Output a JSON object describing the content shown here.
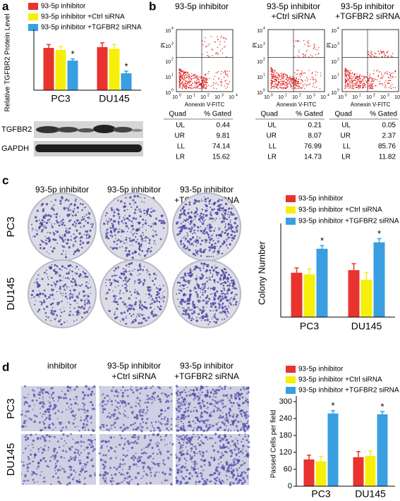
{
  "panel_labels": [
    "a",
    "b",
    "c",
    "d"
  ],
  "chart_data": [
    {
      "type": "bar",
      "ylabel": "Relative TGFBR2 Protein Level",
      "categories": [
        "PC3",
        "DU145"
      ],
      "ylim": [
        0,
        1.3
      ],
      "series": [
        {
          "name": "93-5p inhibitor",
          "color": "#e8332e",
          "values": [
            1.0,
            1.02
          ],
          "errors": [
            0.08,
            0.1
          ]
        },
        {
          "name": "93-5p inhibitor +Ctrl siRNA",
          "color": "#f5ef0a",
          "values": [
            0.95,
            0.98
          ],
          "errors": [
            0.08,
            0.1
          ]
        },
        {
          "name": "93-5p inhibitor +TGFBR2 siRNA",
          "color": "#3a9fe0",
          "values": [
            0.7,
            0.4
          ],
          "errors": [
            0.04,
            0.05
          ],
          "significance": [
            "*",
            "*"
          ]
        }
      ]
    },
    {
      "type": "bar",
      "ylabel": "Colony Number",
      "categories": [
        "PC3",
        "DU145"
      ],
      "ylim": [
        0,
        165
      ],
      "series": [
        {
          "name": "93-5p inhibitor",
          "color": "#e8332e",
          "values": [
            83,
            88
          ],
          "errors": [
            9,
            12
          ]
        },
        {
          "name": "93-5p inhibitor +Ctrl siRNA",
          "color": "#f5ef0a",
          "values": [
            80,
            70
          ],
          "errors": [
            10,
            13
          ]
        },
        {
          "name": "93-5p inhibitor +TGFBR2 siRNA",
          "color": "#3a9fe0",
          "values": [
            128,
            140
          ],
          "errors": [
            6,
            7
          ],
          "significance": [
            "*",
            "*"
          ]
        }
      ]
    },
    {
      "type": "bar",
      "ylabel": "Passed Cells per field",
      "categories": [
        "PC3",
        "DU145"
      ],
      "ylim": [
        0,
        300
      ],
      "yticks": [
        0,
        60,
        120,
        180,
        240,
        300
      ],
      "series": [
        {
          "name": "93-5p inhibitor",
          "color": "#e8332e",
          "values": [
            95,
            103
          ],
          "errors": [
            15,
            20
          ]
        },
        {
          "name": "93-5p inhibitor +Ctrl siRNA",
          "color": "#f5ef0a",
          "values": [
            88,
            107
          ],
          "errors": [
            18,
            18
          ]
        },
        {
          "name": "93-5p inhibitor +TGFBR2 siRNA",
          "color": "#3a9fe0",
          "values": [
            258,
            255
          ],
          "errors": [
            10,
            10
          ],
          "significance": [
            "*",
            "*"
          ]
        }
      ]
    }
  ],
  "blot": {
    "labels": [
      "TGFBR2",
      "GAPDH"
    ]
  },
  "flow": {
    "xlabel": "Annexin V-FITC",
    "ylabel": "PI",
    "tick_base": "10",
    "tick_exponents": [
      "0",
      "1",
      "2",
      "3",
      "4"
    ],
    "table_header": [
      "Quad",
      "% Gated"
    ],
    "panels": [
      {
        "title": [
          "93-5p inhibitor"
        ],
        "rows": [
          [
            "UL",
            0.44
          ],
          [
            "UR",
            9.81
          ],
          [
            "LL",
            74.14
          ],
          [
            "LR",
            15.62
          ]
        ]
      },
      {
        "title": [
          "93-5p inhibitor",
          "+Ctrl siRNA"
        ],
        "rows": [
          [
            "UL",
            0.21
          ],
          [
            "UR",
            8.07
          ],
          [
            "LL",
            76.99
          ],
          [
            "LR",
            14.73
          ]
        ]
      },
      {
        "title": [
          "93-5p inhibitor",
          "+TGFBR2 siRNA"
        ],
        "rows": [
          [
            "UL",
            0.05
          ],
          [
            "UR",
            2.37
          ],
          [
            "LL",
            85.76
          ],
          [
            "LR",
            11.82
          ]
        ]
      }
    ]
  },
  "colony": {
    "column_titles": [
      [
        "93-5p inhibitor"
      ],
      [
        "93-5p inhibitor",
        "+Ctrl siRNA"
      ],
      [
        "93-5p inhibitor",
        "+TGFBR2 siRNA"
      ]
    ],
    "row_labels": [
      "PC3",
      "DU145"
    ]
  },
  "migration": {
    "column_titles": [
      [
        "inhibitor"
      ],
      [
        "93-5p inhibitor",
        "+Ctrl siRNA"
      ],
      [
        "93-5p inhibitor",
        "+TGFBR2 siRNA"
      ]
    ],
    "row_labels": [
      "PC3",
      "DU145"
    ]
  }
}
